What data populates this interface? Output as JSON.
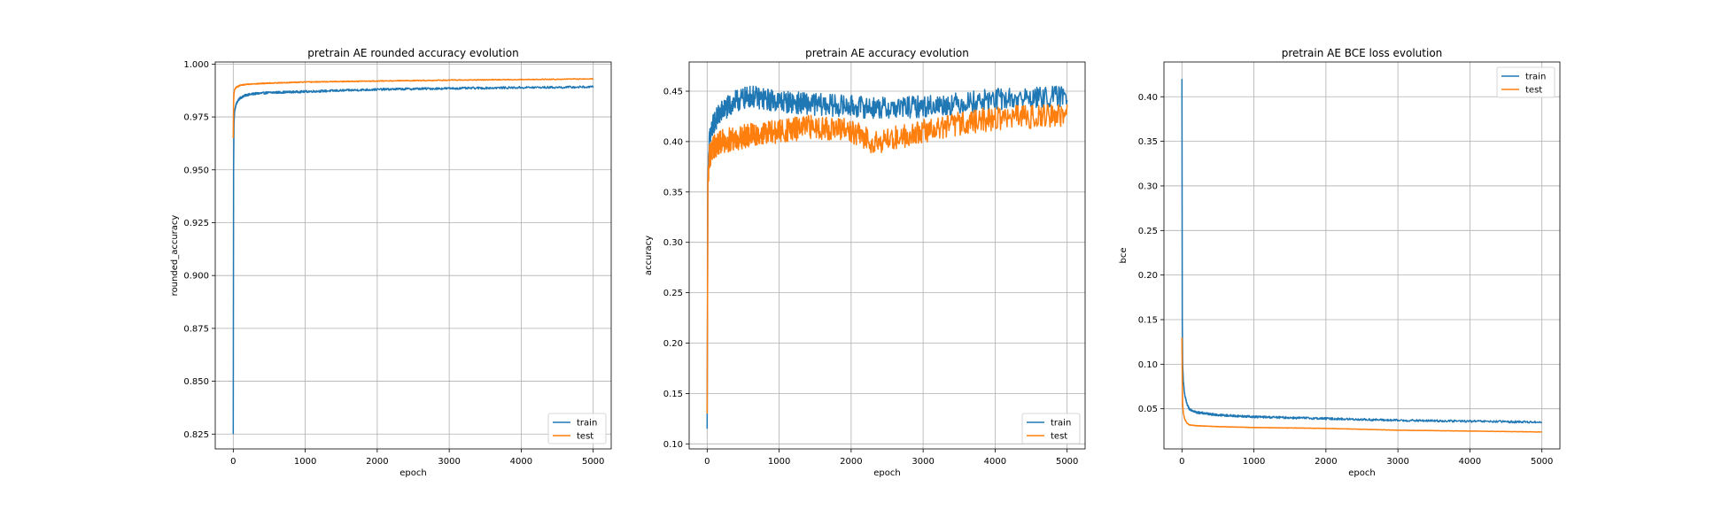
{
  "colors": {
    "train": "#1f77b4",
    "test": "#ff7f0e",
    "grid": "#b0b0b0"
  },
  "chart_data": [
    {
      "type": "line",
      "title": "pretrain AE rounded accuracy evolution",
      "xlabel": "epoch",
      "ylabel": "rounded_accuracy",
      "xlim": [
        -250,
        5250
      ],
      "ylim": [
        0.818,
        1.001
      ],
      "xticks": [
        0,
        1000,
        2000,
        3000,
        4000,
        5000
      ],
      "xtick_labels": [
        "0",
        "1000",
        "2000",
        "3000",
        "4000",
        "5000"
      ],
      "yticks": [
        0.825,
        0.85,
        0.875,
        0.9,
        0.925,
        0.95,
        0.975,
        1.0
      ],
      "ytick_labels": [
        "0.825",
        "0.850",
        "0.875",
        "0.900",
        "0.925",
        "0.950",
        "0.975",
        "1.000"
      ],
      "grid": true,
      "legend": "lower right",
      "series": [
        {
          "name": "train",
          "noise": 0.0005,
          "x": [
            0,
            5,
            10,
            20,
            40,
            70,
            100,
            150,
            200,
            300,
            500,
            1000,
            1500,
            2000,
            2500,
            3000,
            3500,
            4000,
            4500,
            5000
          ],
          "y": [
            0.825,
            0.95,
            0.972,
            0.978,
            0.981,
            0.983,
            0.984,
            0.985,
            0.9855,
            0.986,
            0.9865,
            0.987,
            0.9875,
            0.988,
            0.9883,
            0.9885,
            0.9887,
            0.9889,
            0.989,
            0.9892
          ]
        },
        {
          "name": "test",
          "noise": 0.0002,
          "x": [
            0,
            5,
            10,
            20,
            40,
            70,
            100,
            200,
            500,
            1000,
            2000,
            3000,
            4000,
            5000
          ],
          "y": [
            0.965,
            0.982,
            0.986,
            0.988,
            0.989,
            0.9895,
            0.99,
            0.9905,
            0.991,
            0.9915,
            0.992,
            0.9924,
            0.9927,
            0.993
          ]
        }
      ]
    },
    {
      "type": "line",
      "title": "pretrain AE accuracy evolution",
      "xlabel": "epoch",
      "ylabel": "accuracy",
      "xlim": [
        -250,
        5250
      ],
      "ylim": [
        0.095,
        0.479
      ],
      "xticks": [
        0,
        1000,
        2000,
        3000,
        4000,
        5000
      ],
      "xtick_labels": [
        "0",
        "1000",
        "2000",
        "3000",
        "4000",
        "5000"
      ],
      "yticks": [
        0.1,
        0.15,
        0.2,
        0.25,
        0.3,
        0.35,
        0.4,
        0.45
      ],
      "ytick_labels": [
        "0.10",
        "0.15",
        "0.20",
        "0.25",
        "0.30",
        "0.35",
        "0.40",
        "0.45"
      ],
      "grid": true,
      "legend": "lower right",
      "series": [
        {
          "name": "train",
          "noise": 0.011,
          "x": [
            0,
            10,
            30,
            60,
            100,
            200,
            400,
            600,
            800,
            1000,
            1500,
            2000,
            2500,
            3000,
            3500,
            4000,
            4500,
            5000
          ],
          "y": [
            0.115,
            0.36,
            0.4,
            0.41,
            0.42,
            0.43,
            0.44,
            0.445,
            0.442,
            0.44,
            0.437,
            0.435,
            0.433,
            0.435,
            0.438,
            0.442,
            0.443,
            0.445
          ]
        },
        {
          "name": "test",
          "noise": 0.012,
          "x": [
            0,
            10,
            30,
            60,
            100,
            200,
            500,
            1000,
            1500,
            2000,
            2300,
            2500,
            3000,
            3500,
            4000,
            4500,
            5000
          ],
          "y": [
            0.13,
            0.36,
            0.385,
            0.39,
            0.395,
            0.4,
            0.405,
            0.41,
            0.415,
            0.41,
            0.4,
            0.402,
            0.41,
            0.418,
            0.423,
            0.425,
            0.427
          ]
        }
      ]
    },
    {
      "type": "line",
      "title": "pretrain AE BCE loss evolution",
      "xlabel": "epoch",
      "ylabel": "bce",
      "xlim": [
        -250,
        5250
      ],
      "ylim": [
        0.005,
        0.439
      ],
      "xticks": [
        0,
        1000,
        2000,
        3000,
        4000,
        5000
      ],
      "xtick_labels": [
        "0",
        "1000",
        "2000",
        "3000",
        "4000",
        "5000"
      ],
      "yticks": [
        0.05,
        0.1,
        0.15,
        0.2,
        0.25,
        0.3,
        0.35,
        0.4
      ],
      "ytick_labels": [
        "0.05",
        "0.10",
        "0.15",
        "0.20",
        "0.25",
        "0.30",
        "0.35",
        "0.40"
      ],
      "grid": true,
      "legend": "upper right",
      "series": [
        {
          "name": "train",
          "noise": 0.0012,
          "x": [
            0,
            5,
            10,
            20,
            40,
            70,
            100,
            200,
            500,
            1000,
            2000,
            3000,
            4000,
            5000
          ],
          "y": [
            0.42,
            0.15,
            0.1,
            0.08,
            0.065,
            0.055,
            0.05,
            0.046,
            0.043,
            0.041,
            0.039,
            0.037,
            0.036,
            0.035
          ]
        },
        {
          "name": "test",
          "noise": 0.0002,
          "x": [
            0,
            5,
            10,
            20,
            40,
            70,
            100,
            200,
            500,
            1000,
            2000,
            3000,
            4000,
            5000
          ],
          "y": [
            0.13,
            0.08,
            0.055,
            0.045,
            0.038,
            0.034,
            0.032,
            0.031,
            0.03,
            0.029,
            0.028,
            0.026,
            0.025,
            0.024
          ]
        }
      ]
    }
  ]
}
